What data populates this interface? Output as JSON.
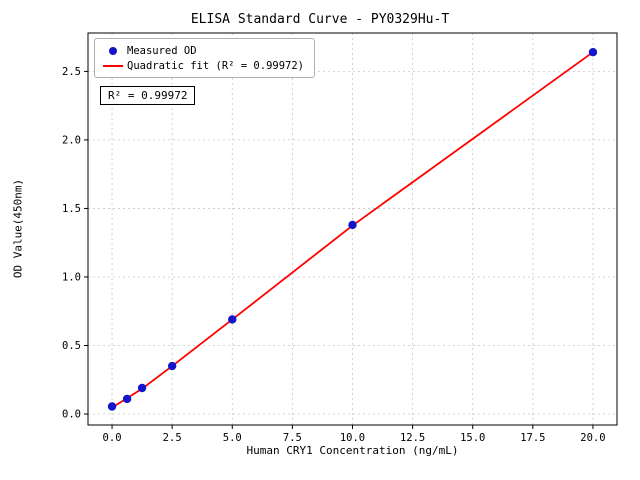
{
  "figure": {
    "title": "ELISA Standard Curve - PY0329Hu-T",
    "xlabel": "Human CRY1 Concentration (ng/mL)",
    "ylabel": "OD Value(450nm)",
    "annotation": "R² = 0.99972"
  },
  "legend": {
    "entries": [
      {
        "label": "Measured OD",
        "marker": "dot",
        "color": "#1414cd"
      },
      {
        "label": "Quadratic fit (R² = 0.99972)",
        "marker": "line",
        "color": "#ff0000"
      }
    ]
  },
  "chart_data": {
    "type": "scatter",
    "title": "ELISA Standard Curve - PY0329Hu-T",
    "xlabel": "Human CRY1 Concentration (ng/mL)",
    "ylabel": "OD Value(450nm)",
    "xlim": [
      -1.0,
      21.0
    ],
    "ylim": [
      -0.08,
      2.78
    ],
    "xticks": [
      0.0,
      2.5,
      5.0,
      7.5,
      10.0,
      12.5,
      15.0,
      17.5,
      20.0
    ],
    "xtick_labels": [
      "0.0",
      "2.5",
      "5.0",
      "7.5",
      "10.0",
      "12.5",
      "15.0",
      "17.5",
      "20.0"
    ],
    "yticks": [
      0.0,
      0.5,
      1.0,
      1.5,
      2.0,
      2.5
    ],
    "ytick_labels": [
      "0.0",
      "0.5",
      "1.0",
      "1.5",
      "2.0",
      "2.5"
    ],
    "grid": true,
    "grid_color": "#c8c8c8",
    "series": [
      {
        "name": "Quadratic fit (R² = 0.99972)",
        "type": "line",
        "color": "#ff0000",
        "x": [
          0,
          0.625,
          1.25,
          2.5,
          5,
          10,
          20
        ],
        "y": [
          0.048,
          0.115,
          0.185,
          0.35,
          0.69,
          1.375,
          2.64
        ]
      },
      {
        "name": "Measured OD",
        "type": "scatter",
        "color": "#1414cd",
        "x": [
          0,
          0.625,
          1.25,
          2.5,
          5,
          10,
          20
        ],
        "y": [
          0.055,
          0.11,
          0.19,
          0.35,
          0.69,
          1.38,
          2.64
        ]
      }
    ],
    "legend_position": "upper left",
    "annotation": "R² = 0.99972"
  }
}
